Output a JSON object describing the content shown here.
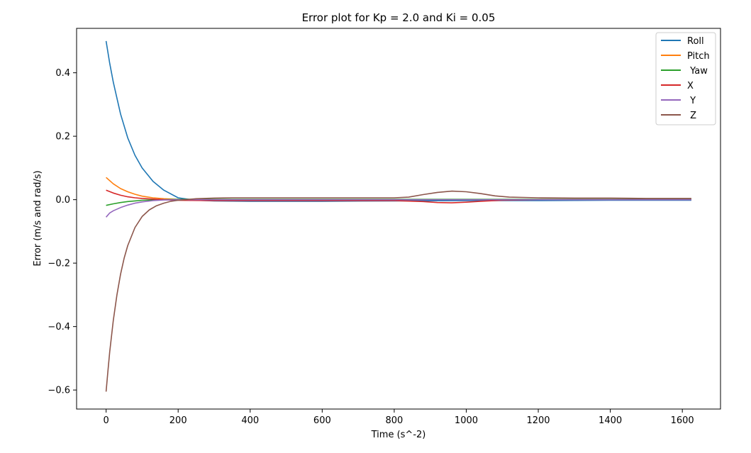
{
  "chart_data": {
    "type": "line",
    "title": "Error plot for Kp = 2.0 and Ki = 0.05",
    "xlabel": "Time (s^-2)",
    "ylabel": "Error (m/s and rad/s)",
    "xlim": [
      -82,
      1706
    ],
    "ylim": [
      -0.66,
      0.54
    ],
    "xticks": [
      0,
      200,
      400,
      600,
      800,
      1000,
      1200,
      1400,
      1600
    ],
    "xtick_labels": [
      "0",
      "200",
      "400",
      "600",
      "800",
      "1000",
      "1200",
      "1400",
      "1600"
    ],
    "yticks": [
      0.4,
      0.2,
      0.0,
      -0.2,
      -0.4,
      -0.6
    ],
    "ytick_labels": [
      "0.4",
      "0.2",
      "0.0",
      "−0.2",
      "−0.4",
      "−0.6"
    ],
    "grid": false,
    "legend_position": "top-right",
    "series": [
      {
        "name": "Roll",
        "color": "#1f77b4",
        "x": [
          0,
          10,
          20,
          40,
          60,
          80,
          100,
          130,
          160,
          200,
          250,
          300,
          400,
          600,
          800,
          1000,
          1200,
          1400,
          1625
        ],
        "y": [
          0.5,
          0.43,
          0.37,
          0.27,
          0.195,
          0.14,
          0.1,
          0.058,
          0.03,
          0.006,
          -0.002,
          -0.004,
          -0.005,
          -0.005,
          -0.004,
          -0.003,
          -0.003,
          -0.002,
          -0.002
        ]
      },
      {
        "name": "Pitch",
        "color": "#ff7f0e",
        "x": [
          0,
          20,
          40,
          60,
          80,
          100,
          130,
          160,
          200,
          250,
          300,
          500,
          800,
          1200,
          1625
        ],
        "y": [
          0.07,
          0.05,
          0.035,
          0.025,
          0.017,
          0.011,
          0.006,
          0.003,
          0.001,
          0.0,
          0.0,
          0.0,
          0.0,
          0.0,
          0.0
        ]
      },
      {
        "name": " Yaw",
        "color": "#2ca02c",
        "x": [
          0,
          20,
          40,
          60,
          80,
          100,
          130,
          160,
          200,
          250,
          400,
          800,
          1200,
          1625
        ],
        "y": [
          -0.018,
          -0.013,
          -0.009,
          -0.006,
          -0.004,
          -0.002,
          -0.001,
          0.0,
          0.001,
          0.001,
          0.001,
          0.001,
          0.001,
          0.001
        ]
      },
      {
        "name": "X",
        "color": "#d62728",
        "x": [
          0,
          20,
          40,
          60,
          80,
          100,
          130,
          160,
          200,
          300,
          400,
          600,
          800,
          880,
          920,
          960,
          1000,
          1040,
          1100,
          1200,
          1400,
          1625
        ],
        "y": [
          0.03,
          0.021,
          0.014,
          0.009,
          0.006,
          0.004,
          0.002,
          0.0,
          -0.002,
          -0.003,
          -0.003,
          -0.003,
          -0.003,
          -0.006,
          -0.009,
          -0.01,
          -0.008,
          -0.005,
          -0.002,
          0.0,
          0.0,
          0.0
        ]
      },
      {
        "name": " Y",
        "color": "#9467bd",
        "x": [
          0,
          10,
          20,
          40,
          60,
          80,
          100,
          130,
          160,
          200,
          250,
          400,
          800,
          1200,
          1625
        ],
        "y": [
          -0.055,
          -0.042,
          -0.035,
          -0.025,
          -0.017,
          -0.011,
          -0.007,
          -0.003,
          -0.001,
          0.0,
          0.0,
          0.0,
          0.0,
          0.0,
          0.0
        ]
      },
      {
        "name": " Z",
        "color": "#8c564b",
        "x": [
          0,
          5,
          10,
          20,
          30,
          40,
          50,
          60,
          80,
          100,
          120,
          140,
          160,
          180,
          200,
          220,
          250,
          300,
          350,
          400,
          500,
          600,
          700,
          800,
          840,
          880,
          920,
          960,
          1000,
          1040,
          1080,
          1120,
          1200,
          1300,
          1400,
          1500,
          1625
        ],
        "y": [
          -0.605,
          -0.54,
          -0.48,
          -0.38,
          -0.3,
          -0.235,
          -0.185,
          -0.145,
          -0.088,
          -0.053,
          -0.032,
          -0.019,
          -0.011,
          -0.005,
          -0.002,
          0.0,
          0.003,
          0.005,
          0.006,
          0.006,
          0.006,
          0.006,
          0.006,
          0.006,
          0.008,
          0.016,
          0.023,
          0.027,
          0.025,
          0.019,
          0.012,
          0.008,
          0.006,
          0.005,
          0.005,
          0.004,
          0.004
        ]
      }
    ]
  }
}
